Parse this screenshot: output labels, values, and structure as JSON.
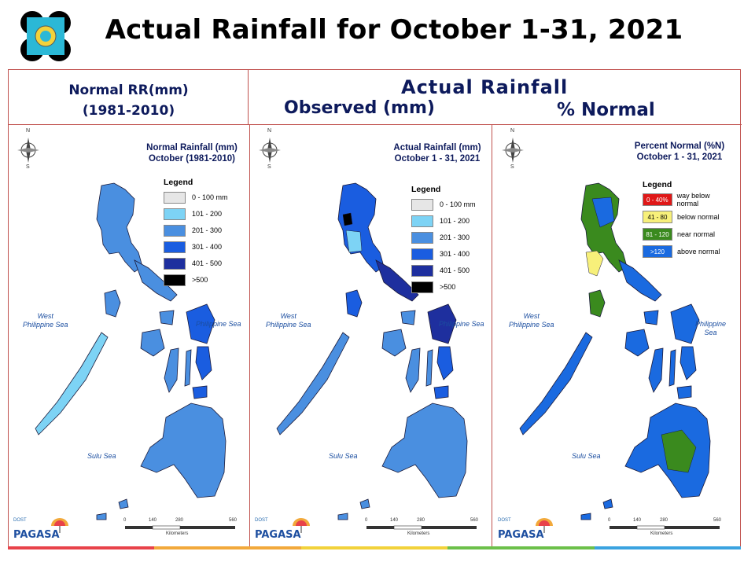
{
  "title": "Actual Rainfall for October 1-31, 2021",
  "header": {
    "normal_rr": "Normal RR(mm)",
    "normal_period": "(1981-2010)",
    "actual_rainfall": "Actual Rainfall",
    "observed": "Observed (mm)",
    "pct_normal": "% Normal"
  },
  "maps": [
    {
      "title_line1": "Normal Rainfall (mm)",
      "title_line2": "October (1981-2010)",
      "legend_title": "Legend",
      "legend": [
        {
          "label": "0 - 100 mm",
          "color": "#e6e6e6"
        },
        {
          "label": "101 - 200",
          "color": "#7dd3f5"
        },
        {
          "label": "201 - 300",
          "color": "#4a8fe0"
        },
        {
          "label": "301 - 400",
          "color": "#1a5de0"
        },
        {
          "label": "401 - 500",
          "color": "#1e2f9e"
        },
        {
          "label": ">500",
          "color": "#000000"
        }
      ]
    },
    {
      "title_line1": "Actual Rainfall (mm)",
      "title_line2": "October 1 - 31, 2021",
      "legend_title": "Legend",
      "legend": [
        {
          "label": "0 - 100 mm",
          "color": "#e6e6e6"
        },
        {
          "label": "101 - 200",
          "color": "#7dd3f5"
        },
        {
          "label": "201 - 300",
          "color": "#4a8fe0"
        },
        {
          "label": "301 - 400",
          "color": "#1a5de0"
        },
        {
          "label": "401 - 500",
          "color": "#1e2f9e"
        },
        {
          "label": ">500",
          "color": "#000000"
        }
      ]
    },
    {
      "title_line1": "Percent Normal (%N)",
      "title_line2": "October 1 - 31, 2021",
      "legend_title": "Legend",
      "legend": [
        {
          "range": "0 - 40%",
          "label": "way below normal",
          "color": "#e01818"
        },
        {
          "range": "41 - 80",
          "label": "below normal",
          "color": "#f7f07a"
        },
        {
          "range": "81 - 120",
          "label": "near normal",
          "color": "#3a8a1e"
        },
        {
          "range": ">120",
          "label": "above normal",
          "color": "#1a6ae0"
        }
      ]
    }
  ],
  "sea_labels": {
    "west_line1": "West",
    "west_line2": "Philippine Sea",
    "east": "Philippine Sea",
    "sulu": "Sulu Sea"
  },
  "compass": {
    "n": "N",
    "s": "S"
  },
  "scale": {
    "ticks": [
      "0",
      "140",
      "280",
      "560"
    ],
    "unit": "Kilometers"
  },
  "branding": {
    "agency": "PAGASA",
    "tagline": "DOST"
  },
  "footer_stripe": [
    "#e8424a",
    "#f2a93b",
    "#f2d23b",
    "#6cc04a",
    "#3aa3e0"
  ]
}
